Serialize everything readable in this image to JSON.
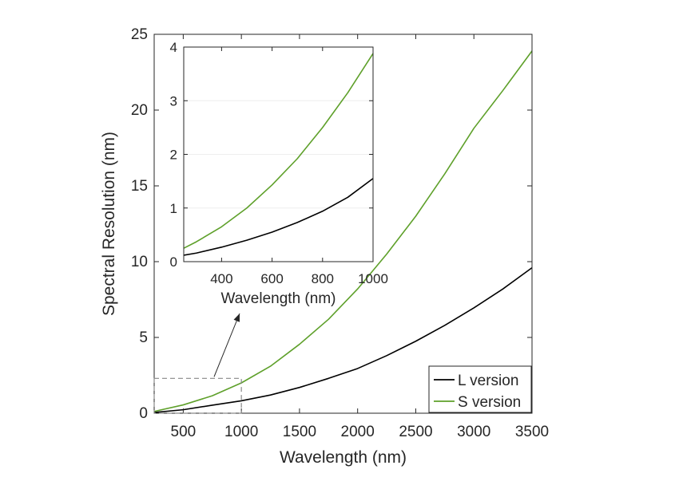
{
  "chart_data": [
    {
      "type": "line",
      "title": "",
      "xlabel": "Wavelength (nm)",
      "ylabel": "Spectral Resolution (nm)",
      "xlim": [
        250,
        3500
      ],
      "ylim": [
        0,
        25
      ],
      "xticks": [
        "500",
        "1000",
        "1500",
        "2000",
        "2500",
        "3000",
        "3500"
      ],
      "yticks": [
        "0",
        "5",
        "10",
        "15",
        "20",
        "25"
      ],
      "legend_position": "bottom-right",
      "series": [
        {
          "name": "L version",
          "color": "#000000",
          "x": [
            250,
            500,
            750,
            1000,
            1250,
            1500,
            1750,
            2000,
            2250,
            2500,
            2750,
            3000,
            3250,
            3500
          ],
          "y": [
            0.05,
            0.23,
            0.53,
            0.82,
            1.2,
            1.7,
            2.3,
            2.95,
            3.8,
            4.75,
            5.8,
            6.95,
            8.2,
            9.6
          ]
        },
        {
          "name": "S version",
          "color": "#5ea02a",
          "x": [
            250,
            500,
            750,
            1000,
            1250,
            1500,
            1750,
            2000,
            2250,
            2500,
            2750,
            3000,
            3250,
            3500
          ],
          "y": [
            0.12,
            0.55,
            1.15,
            2.0,
            3.1,
            4.55,
            6.2,
            8.2,
            10.5,
            13.0,
            15.8,
            18.8,
            21.3,
            23.9
          ]
        }
      ],
      "zoom_box": {
        "x": [
          250,
          1000
        ],
        "y": [
          0,
          2.3
        ]
      }
    },
    {
      "type": "line",
      "title": "",
      "xlabel": "Wavelength (nm)",
      "ylabel": "",
      "xlim": [
        250,
        1000
      ],
      "ylim": [
        0,
        4
      ],
      "xticks": [
        "400",
        "600",
        "800",
        "1000"
      ],
      "yticks": [
        "0",
        "1",
        "2",
        "3",
        "4"
      ],
      "series": [
        {
          "color": "#000000",
          "x": [
            250,
            300,
            400,
            500,
            600,
            700,
            800,
            900,
            1000
          ],
          "y": [
            0.12,
            0.16,
            0.27,
            0.4,
            0.55,
            0.73,
            0.94,
            1.2,
            1.55
          ]
        },
        {
          "color": "#5ea02a",
          "x": [
            250,
            300,
            400,
            500,
            600,
            700,
            800,
            900,
            1000
          ],
          "y": [
            0.25,
            0.37,
            0.65,
            1.0,
            1.43,
            1.92,
            2.5,
            3.15,
            3.88
          ]
        }
      ]
    }
  ]
}
